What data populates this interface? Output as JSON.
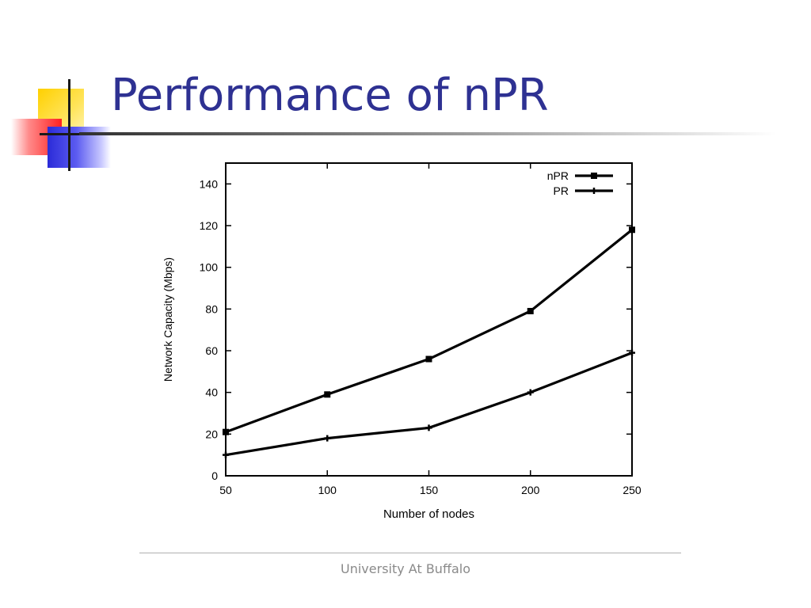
{
  "slide": {
    "title": "Performance of nPR",
    "footer": "University At Buffalo"
  },
  "colors": {
    "title": "#2e3192",
    "line": "#000000"
  },
  "chart_data": {
    "type": "line",
    "x": [
      50,
      100,
      150,
      200,
      250
    ],
    "series": [
      {
        "name": "nPR",
        "values": [
          21,
          39,
          56,
          79,
          118
        ],
        "marker": "square"
      },
      {
        "name": "PR",
        "values": [
          10,
          18,
          23,
          40,
          59
        ],
        "marker": "plus"
      }
    ],
    "xlabel": "Number of nodes",
    "ylabel": "Network Capacity (Mbps)",
    "xlim": [
      50,
      250
    ],
    "ylim": [
      0,
      150
    ],
    "xticks": [
      50,
      100,
      150,
      200,
      250
    ],
    "yticks": [
      0,
      20,
      40,
      60,
      80,
      100,
      120,
      140
    ],
    "grid": false,
    "legend": "top-right"
  }
}
